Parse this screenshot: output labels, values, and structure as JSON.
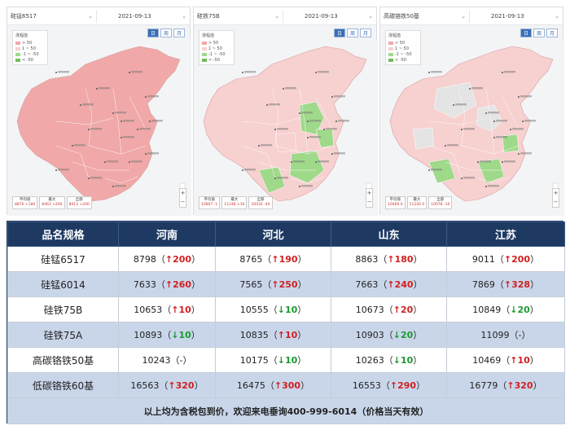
{
  "colors": {
    "header_bg": "#1e3a63",
    "row_alt": "#c9d6ea",
    "up": "#d21f1f",
    "down": "#1a9a2c",
    "map_up": "#f0a8a8",
    "map_light": "#f7d0d0",
    "map_down": "#9fd98a",
    "map_na": "#e4e4e4"
  },
  "maps": [
    {
      "product": "硅锰6517",
      "date": "2021-09-13",
      "tabs": [
        "日",
        "周",
        "月"
      ],
      "legend_title": "涨幅值",
      "legend": [
        "> 50",
        "1 ~ 50",
        "-1 ~ -50",
        "< -50"
      ],
      "fill": "up",
      "stats": [
        {
          "label": "平均值",
          "value": "8870 +180"
        },
        {
          "label": "最大",
          "value": "8463 +200"
        },
        {
          "label": "全部",
          "value": "8913 +200"
        }
      ]
    },
    {
      "product": "硅铁75B",
      "date": "2021-09-13",
      "tabs": [
        "日",
        "周",
        "月"
      ],
      "legend_title": "涨幅值",
      "legend": [
        "> 50",
        "1 ~ 50",
        "-1 ~ -50",
        "< -50"
      ],
      "fill": "mixed",
      "stats": [
        {
          "label": "平均值",
          "value": "10807 -1"
        },
        {
          "label": "最大",
          "value": "11248 +30"
        },
        {
          "label": "全部",
          "value": "10432 -40"
        }
      ]
    },
    {
      "product": "高碳铬铁50基",
      "date": "2021-09-13",
      "tabs": [
        "日",
        "周",
        "月"
      ],
      "legend_title": "涨幅值",
      "legend": [
        "> 50",
        "1 ~ 50",
        "-1 ~ -50",
        "< -50"
      ],
      "fill": "mixed2",
      "stats": [
        {
          "label": "平均值",
          "value": "10469 0"
        },
        {
          "label": "最大",
          "value": "11220 0"
        },
        {
          "label": "全部",
          "value": "10078 -10"
        }
      ]
    }
  ],
  "table": {
    "headers": [
      "品名规格",
      "河南",
      "河北",
      "山东",
      "江苏"
    ],
    "rows": [
      {
        "name": "硅锰6517",
        "cells": [
          {
            "price": "8798",
            "dir": "up",
            "arrow": "↑",
            "chg": "200"
          },
          {
            "price": "8765",
            "dir": "up",
            "arrow": "↑",
            "chg": "190"
          },
          {
            "price": "8863",
            "dir": "up",
            "arrow": "↑",
            "chg": "180"
          },
          {
            "price": "9011",
            "dir": "up",
            "arrow": "↑",
            "chg": "200"
          }
        ]
      },
      {
        "name": "硅锰6014",
        "cells": [
          {
            "price": "7633",
            "dir": "up",
            "arrow": "↑",
            "chg": "260"
          },
          {
            "price": "7565",
            "dir": "up",
            "arrow": "↑",
            "chg": "250"
          },
          {
            "price": "7663",
            "dir": "up",
            "arrow": "↑",
            "chg": "240"
          },
          {
            "price": "7869",
            "dir": "up",
            "arrow": "↑",
            "chg": "328"
          }
        ]
      },
      {
        "name": "硅铁75B",
        "cells": [
          {
            "price": "10653",
            "dir": "up",
            "arrow": "↑",
            "chg": "10"
          },
          {
            "price": "10555",
            "dir": "down",
            "arrow": "↓",
            "chg": "10"
          },
          {
            "price": "10673",
            "dir": "up",
            "arrow": "↑",
            "chg": "20"
          },
          {
            "price": "10849",
            "dir": "down",
            "arrow": "↓",
            "chg": "20"
          }
        ]
      },
      {
        "name": "硅铁75A",
        "cells": [
          {
            "price": "10893",
            "dir": "down",
            "arrow": "↓",
            "chg": "10"
          },
          {
            "price": "10835",
            "dir": "up",
            "arrow": "↑",
            "chg": "10"
          },
          {
            "price": "10903",
            "dir": "down",
            "arrow": "↓",
            "chg": "20"
          },
          {
            "price": "11099",
            "dir": "flat",
            "arrow": "",
            "chg": "-"
          }
        ]
      },
      {
        "name": "高碳铬铁50基",
        "cells": [
          {
            "price": "10243",
            "dir": "flat",
            "arrow": "",
            "chg": "-"
          },
          {
            "price": "10175",
            "dir": "down",
            "arrow": "↓",
            "chg": "10"
          },
          {
            "price": "10263",
            "dir": "down",
            "arrow": "↓",
            "chg": "10"
          },
          {
            "price": "10469",
            "dir": "up",
            "arrow": "↑",
            "chg": "10"
          }
        ]
      },
      {
        "name": "低碳铬铁60基",
        "cells": [
          {
            "price": "16563",
            "dir": "up",
            "arrow": "↑",
            "chg": "320"
          },
          {
            "price": "16475",
            "dir": "up",
            "arrow": "↑",
            "chg": "300"
          },
          {
            "price": "16553",
            "dir": "up",
            "arrow": "↑",
            "chg": "290"
          },
          {
            "price": "16779",
            "dir": "up",
            "arrow": "↑",
            "chg": "320"
          }
        ]
      }
    ],
    "footer": "以上均为含税包到价，欢迎来电垂询400-999-6014（价格当天有效）"
  }
}
